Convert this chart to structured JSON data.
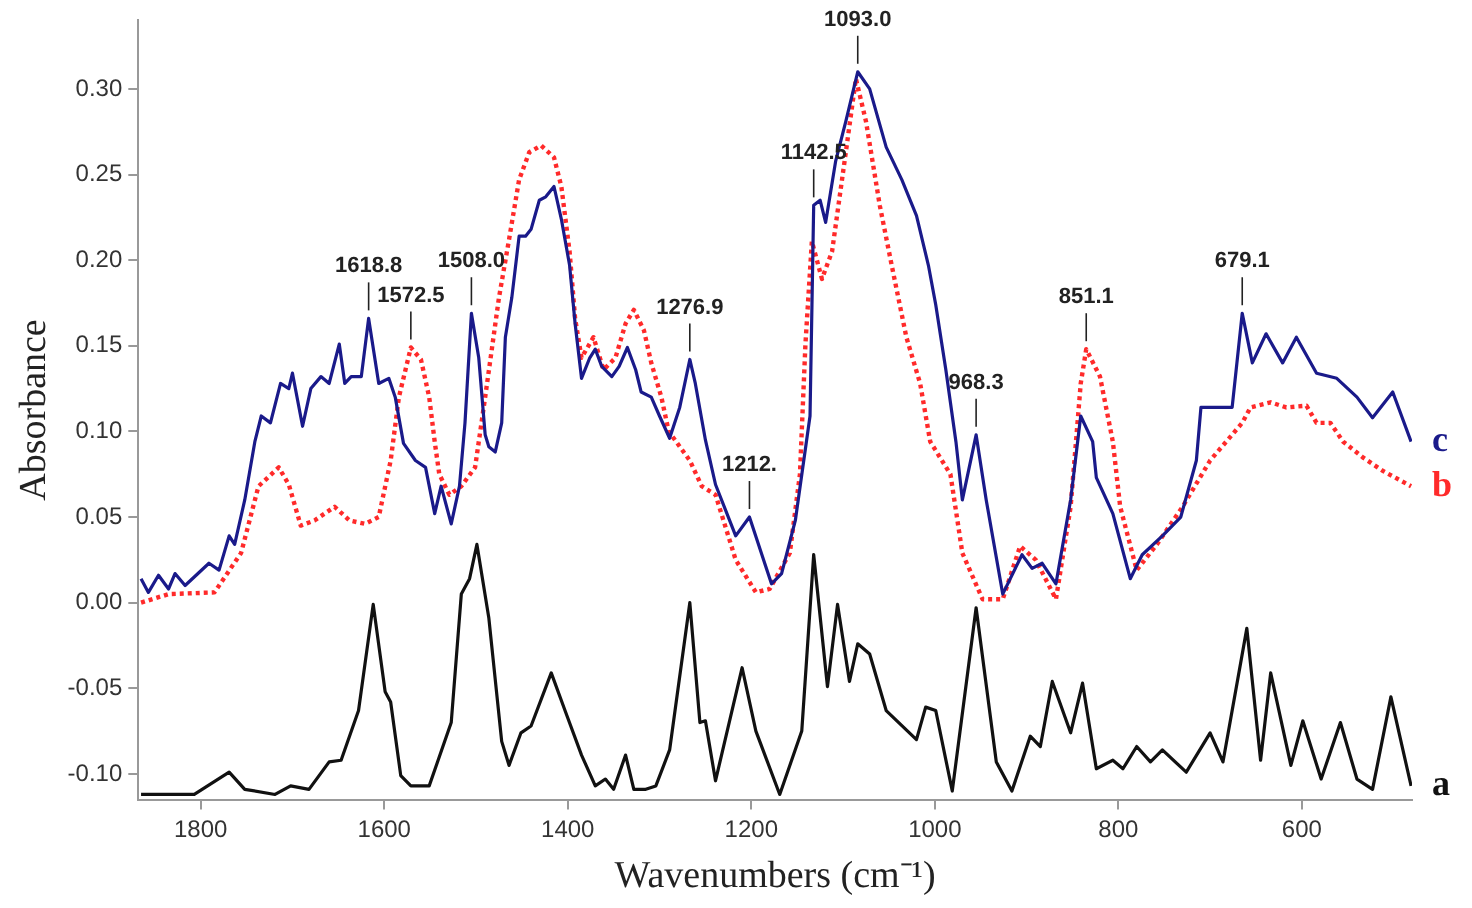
{
  "chart_data": {
    "type": "line",
    "xlabel": "Wavenumbers (cm⁻¹)",
    "ylabel": "Absorbance",
    "xlim": [
      1868,
      480
    ],
    "ylim": [
      -0.115,
      0.34
    ],
    "xticks": [
      1800,
      1600,
      1400,
      1200,
      1000,
      800,
      600
    ],
    "yticks": [
      {
        "value": -0.1,
        "label": "-0.10"
      },
      {
        "value": -0.05,
        "label": "-0.05"
      },
      {
        "value": 0,
        "label": "0.00"
      },
      {
        "value": 0.05,
        "label": "0.05"
      },
      {
        "value": 0.1,
        "label": "0.10"
      },
      {
        "value": 0.15,
        "label": "0.15"
      },
      {
        "value": 0.2,
        "label": "0.20"
      },
      {
        "value": 0.25,
        "label": "0.25"
      },
      {
        "value": 0.3,
        "label": "0.30"
      }
    ],
    "grid": false,
    "legend": false,
    "marker": "none",
    "series": [
      {
        "name": "c",
        "color": "#1a1a8a",
        "line_style": "solid",
        "x": [
          1865,
          1857,
          1846,
          1835,
          1828,
          1817,
          1791,
          1780,
          1769,
          1763,
          1752,
          1741,
          1734,
          1724,
          1713,
          1704,
          1700,
          1689,
          1680,
          1669,
          1660,
          1649,
          1643,
          1636,
          1625,
          1617,
          1606,
          1595,
          1588,
          1579,
          1566,
          1555,
          1545,
          1538,
          1527,
          1518,
          1512,
          1505,
          1497,
          1490,
          1486,
          1479,
          1472,
          1468,
          1461,
          1453,
          1446,
          1440,
          1431,
          1424,
          1415,
          1407,
          1398,
          1392,
          1385,
          1376,
          1370,
          1363,
          1352,
          1344,
          1335,
          1326,
          1320,
          1309,
          1300,
          1289,
          1278,
          1267,
          1261,
          1250,
          1239,
          1217,
          1202,
          1178,
          1167,
          1152,
          1136,
          1132,
          1125,
          1119,
          1108,
          1097,
          1084,
          1071,
          1053,
          1036,
          1020,
          1007,
          999,
          988,
          977,
          970,
          955,
          944,
          926,
          905,
          894,
          883,
          868,
          852,
          841,
          828,
          824,
          806,
          787,
          774,
          752,
          732,
          715,
          710,
          697,
          676,
          665,
          654,
          639,
          621,
          606,
          584,
          562,
          540,
          523,
          501,
          481
        ],
        "values": [
          0.014,
          0.006,
          0.016,
          0.008,
          0.017,
          0.01,
          0.023,
          0.019,
          0.039,
          0.034,
          0.06,
          0.094,
          0.109,
          0.105,
          0.128,
          0.125,
          0.134,
          0.103,
          0.125,
          0.132,
          0.128,
          0.151,
          0.128,
          0.132,
          0.132,
          0.166,
          0.128,
          0.131,
          0.12,
          0.093,
          0.083,
          0.079,
          0.052,
          0.068,
          0.046,
          0.068,
          0.105,
          0.169,
          0.143,
          0.098,
          0.091,
          0.088,
          0.105,
          0.155,
          0.178,
          0.214,
          0.214,
          0.218,
          0.235,
          0.237,
          0.243,
          0.224,
          0.197,
          0.163,
          0.131,
          0.143,
          0.148,
          0.138,
          0.132,
          0.138,
          0.149,
          0.136,
          0.123,
          0.12,
          0.109,
          0.096,
          0.114,
          0.142,
          0.128,
          0.095,
          0.069,
          0.039,
          0.05,
          0.011,
          0.017,
          0.048,
          0.109,
          0.232,
          0.235,
          0.222,
          0.258,
          0.281,
          0.31,
          0.3,
          0.266,
          0.247,
          0.226,
          0.197,
          0.174,
          0.136,
          0.094,
          0.06,
          0.098,
          0.06,
          0.005,
          0.028,
          0.02,
          0.023,
          0.011,
          0.06,
          0.109,
          0.094,
          0.073,
          0.052,
          0.014,
          0.028,
          0.039,
          0.05,
          0.083,
          0.114,
          0.114,
          0.114,
          0.169,
          0.14,
          0.157,
          0.14,
          0.155,
          0.134,
          0.131,
          0.12,
          0.108,
          0.123,
          0.094
        ]
      },
      {
        "name": "b",
        "color": "#ff2a2a",
        "line_style": "dotted",
        "x": [
          1865,
          1835,
          1785,
          1756,
          1737,
          1715,
          1704,
          1691,
          1676,
          1654,
          1638,
          1621,
          1606,
          1593,
          1584,
          1571,
          1560,
          1551,
          1545,
          1540,
          1529,
          1516,
          1501,
          1490,
          1475,
          1464,
          1453,
          1442,
          1429,
          1415,
          1407,
          1398,
          1392,
          1385,
          1372,
          1361,
          1348,
          1337,
          1328,
          1317,
          1309,
          1298,
          1290,
          1267,
          1254,
          1239,
          1217,
          1195,
          1180,
          1158,
          1147,
          1141,
          1134,
          1123,
          1112,
          1097,
          1086,
          1075,
          1060,
          1047,
          1031,
          1016,
          1005,
          983,
          970,
          948,
          926,
          907,
          890,
          868,
          852,
          841,
          835,
          820,
          806,
          798,
          780,
          758,
          730,
          700,
          665,
          656,
          634,
          617,
          595,
          584,
          569,
          555,
          534,
          512,
          481
        ],
        "values": [
          0.0,
          0.005,
          0.006,
          0.029,
          0.068,
          0.079,
          0.069,
          0.045,
          0.048,
          0.056,
          0.048,
          0.046,
          0.05,
          0.083,
          0.12,
          0.149,
          0.142,
          0.12,
          0.094,
          0.075,
          0.063,
          0.068,
          0.079,
          0.12,
          0.178,
          0.212,
          0.247,
          0.263,
          0.267,
          0.26,
          0.243,
          0.205,
          0.166,
          0.143,
          0.155,
          0.136,
          0.143,
          0.163,
          0.171,
          0.159,
          0.14,
          0.12,
          0.1,
          0.083,
          0.068,
          0.063,
          0.025,
          0.006,
          0.008,
          0.029,
          0.075,
          0.151,
          0.211,
          0.189,
          0.205,
          0.263,
          0.306,
          0.281,
          0.232,
          0.197,
          0.155,
          0.128,
          0.094,
          0.075,
          0.029,
          0.002,
          0.002,
          0.033,
          0.025,
          0.002,
          0.056,
          0.128,
          0.148,
          0.132,
          0.094,
          0.056,
          0.019,
          0.034,
          0.056,
          0.083,
          0.105,
          0.114,
          0.117,
          0.114,
          0.115,
          0.105,
          0.105,
          0.094,
          0.085,
          0.077,
          0.068
        ]
      },
      {
        "name": "a",
        "color": "#111111",
        "line_style": "solid",
        "x": [
          1865,
          1807,
          1769,
          1752,
          1719,
          1702,
          1682,
          1660,
          1647,
          1628,
          1612,
          1599,
          1593,
          1582,
          1571,
          1551,
          1527,
          1516,
          1507,
          1499,
          1486,
          1472,
          1464,
          1451,
          1440,
          1418,
          1403,
          1385,
          1370,
          1359,
          1350,
          1337,
          1328,
          1315,
          1304,
          1289,
          1267,
          1256,
          1250,
          1239,
          1210,
          1195,
          1169,
          1145,
          1132,
          1117,
          1106,
          1093,
          1084,
          1071,
          1053,
          1020,
          1010,
          999,
          981,
          955,
          933,
          916,
          896,
          885,
          872,
          852,
          839,
          824,
          806,
          795,
          780,
          765,
          752,
          726,
          700,
          686,
          660,
          645,
          634,
          612,
          599,
          579,
          558,
          540,
          523,
          503,
          481
        ],
        "values": [
          -0.112,
          -0.112,
          -0.099,
          -0.109,
          -0.112,
          -0.107,
          -0.109,
          -0.093,
          -0.092,
          -0.063,
          -0.001,
          -0.052,
          -0.058,
          -0.101,
          -0.107,
          -0.107,
          -0.07,
          0.005,
          0.014,
          0.034,
          -0.009,
          -0.081,
          -0.095,
          -0.076,
          -0.072,
          -0.041,
          -0.063,
          -0.089,
          -0.107,
          -0.103,
          -0.109,
          -0.089,
          -0.109,
          -0.109,
          -0.107,
          -0.086,
          0.0,
          -0.07,
          -0.069,
          -0.104,
          -0.038,
          -0.075,
          -0.112,
          -0.075,
          0.028,
          -0.049,
          -0.001,
          -0.046,
          -0.024,
          -0.03,
          -0.063,
          -0.08,
          -0.061,
          -0.063,
          -0.11,
          -0.003,
          -0.093,
          -0.11,
          -0.078,
          -0.084,
          -0.046,
          -0.076,
          -0.047,
          -0.097,
          -0.092,
          -0.097,
          -0.084,
          -0.093,
          -0.086,
          -0.099,
          -0.076,
          -0.093,
          -0.015,
          -0.092,
          -0.041,
          -0.095,
          -0.069,
          -0.103,
          -0.07,
          -0.103,
          -0.109,
          -0.055,
          -0.107
        ]
      }
    ],
    "annotations": [
      {
        "text": "1618.8",
        "x": 1617,
        "y": 0.166
      },
      {
        "text": "1572.5",
        "x": 1571,
        "y": 0.149
      },
      {
        "text": "1508.0",
        "x": 1505,
        "y": 0.169
      },
      {
        "text": "1276.9",
        "x": 1267,
        "y": 0.142
      },
      {
        "text": "1212.",
        "x": 1202,
        "y": 0.05
      },
      {
        "text": "1142.5",
        "x": 1132,
        "y": 0.232
      },
      {
        "text": "1093.0",
        "x": 1084,
        "y": 0.31
      },
      {
        "text": "968.3",
        "x": 955,
        "y": 0.098
      },
      {
        "text": "851.1",
        "x": 835,
        "y": 0.148
      },
      {
        "text": "679.1",
        "x": 665,
        "y": 0.169
      }
    ]
  }
}
